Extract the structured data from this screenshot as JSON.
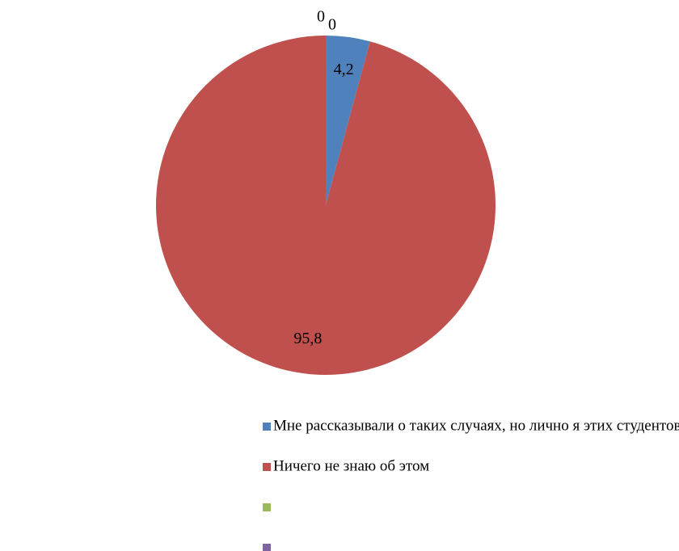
{
  "chart_data": {
    "type": "pie",
    "categories": [
      "Мне рассказывали о таких случаях, но лично я этих студентов не знаю",
      "Ничего не знаю об этом",
      null,
      null
    ],
    "values": [
      4.2,
      95.8,
      0,
      0
    ],
    "value_labels": [
      "4,2",
      "95,8",
      "0",
      "0"
    ],
    "colors": [
      "#4f81bd",
      "#c0504d",
      "#9bbb59",
      "#8064a2"
    ],
    "legend": "bottom"
  }
}
